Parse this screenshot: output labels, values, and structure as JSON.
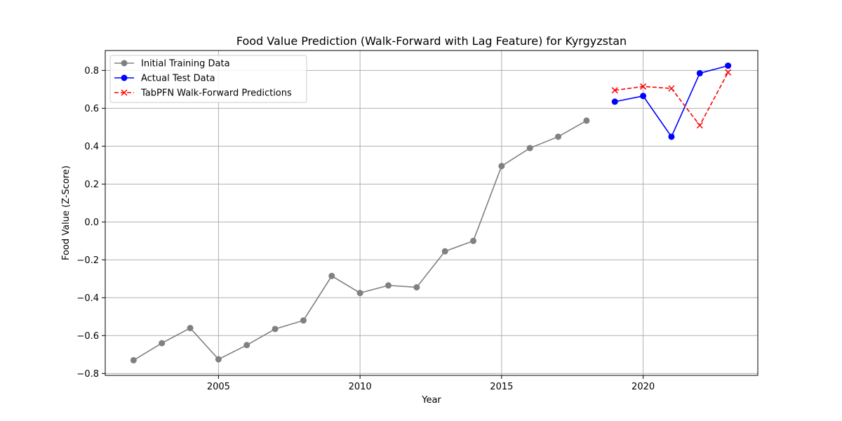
{
  "chart_data": {
    "type": "line",
    "title": "Food Value Prediction (Walk-Forward with Lag Feature) for Kyrgyzstan",
    "xlabel": "Year",
    "ylabel": "Food Value (Z-Score)",
    "xlim": [
      2001,
      2024.05
    ],
    "ylim": [
      -0.81,
      0.905
    ],
    "xticks": [
      2005,
      2010,
      2015,
      2020
    ],
    "yticks": [
      -0.8,
      -0.6,
      -0.4,
      -0.2,
      0.0,
      0.2,
      0.4,
      0.6,
      0.8
    ],
    "yticks_text": [
      "−0.8",
      "−0.6",
      "−0.4",
      "−0.2",
      "0.0",
      "0.2",
      "0.4",
      "0.6",
      "0.8"
    ],
    "grid": true,
    "legend_position": "top-left",
    "series": [
      {
        "name": "Initial Training Data",
        "color": "#808080",
        "linestyle": "solid",
        "marker": "circle",
        "x": [
          2002,
          2003,
          2004,
          2005,
          2006,
          2007,
          2008,
          2009,
          2010,
          2011,
          2012,
          2013,
          2014,
          2015,
          2016,
          2017,
          2018
        ],
        "y": [
          -0.73,
          -0.64,
          -0.56,
          -0.725,
          -0.65,
          -0.565,
          -0.52,
          -0.285,
          -0.375,
          -0.335,
          -0.345,
          -0.155,
          -0.1,
          0.295,
          0.39,
          0.45,
          0.535
        ]
      },
      {
        "name": "Actual Test Data",
        "color": "#0000ff",
        "linestyle": "solid",
        "marker": "circle",
        "x": [
          2019,
          2020,
          2021,
          2022,
          2023
        ],
        "y": [
          0.635,
          0.665,
          0.45,
          0.785,
          0.825
        ]
      },
      {
        "name": "TabPFN Walk-Forward Predictions",
        "color": "#ff0000",
        "linestyle": "dashed",
        "marker": "x",
        "x": [
          2019,
          2020,
          2021,
          2022,
          2023
        ],
        "y": [
          0.695,
          0.715,
          0.705,
          0.51,
          0.79
        ]
      }
    ]
  }
}
